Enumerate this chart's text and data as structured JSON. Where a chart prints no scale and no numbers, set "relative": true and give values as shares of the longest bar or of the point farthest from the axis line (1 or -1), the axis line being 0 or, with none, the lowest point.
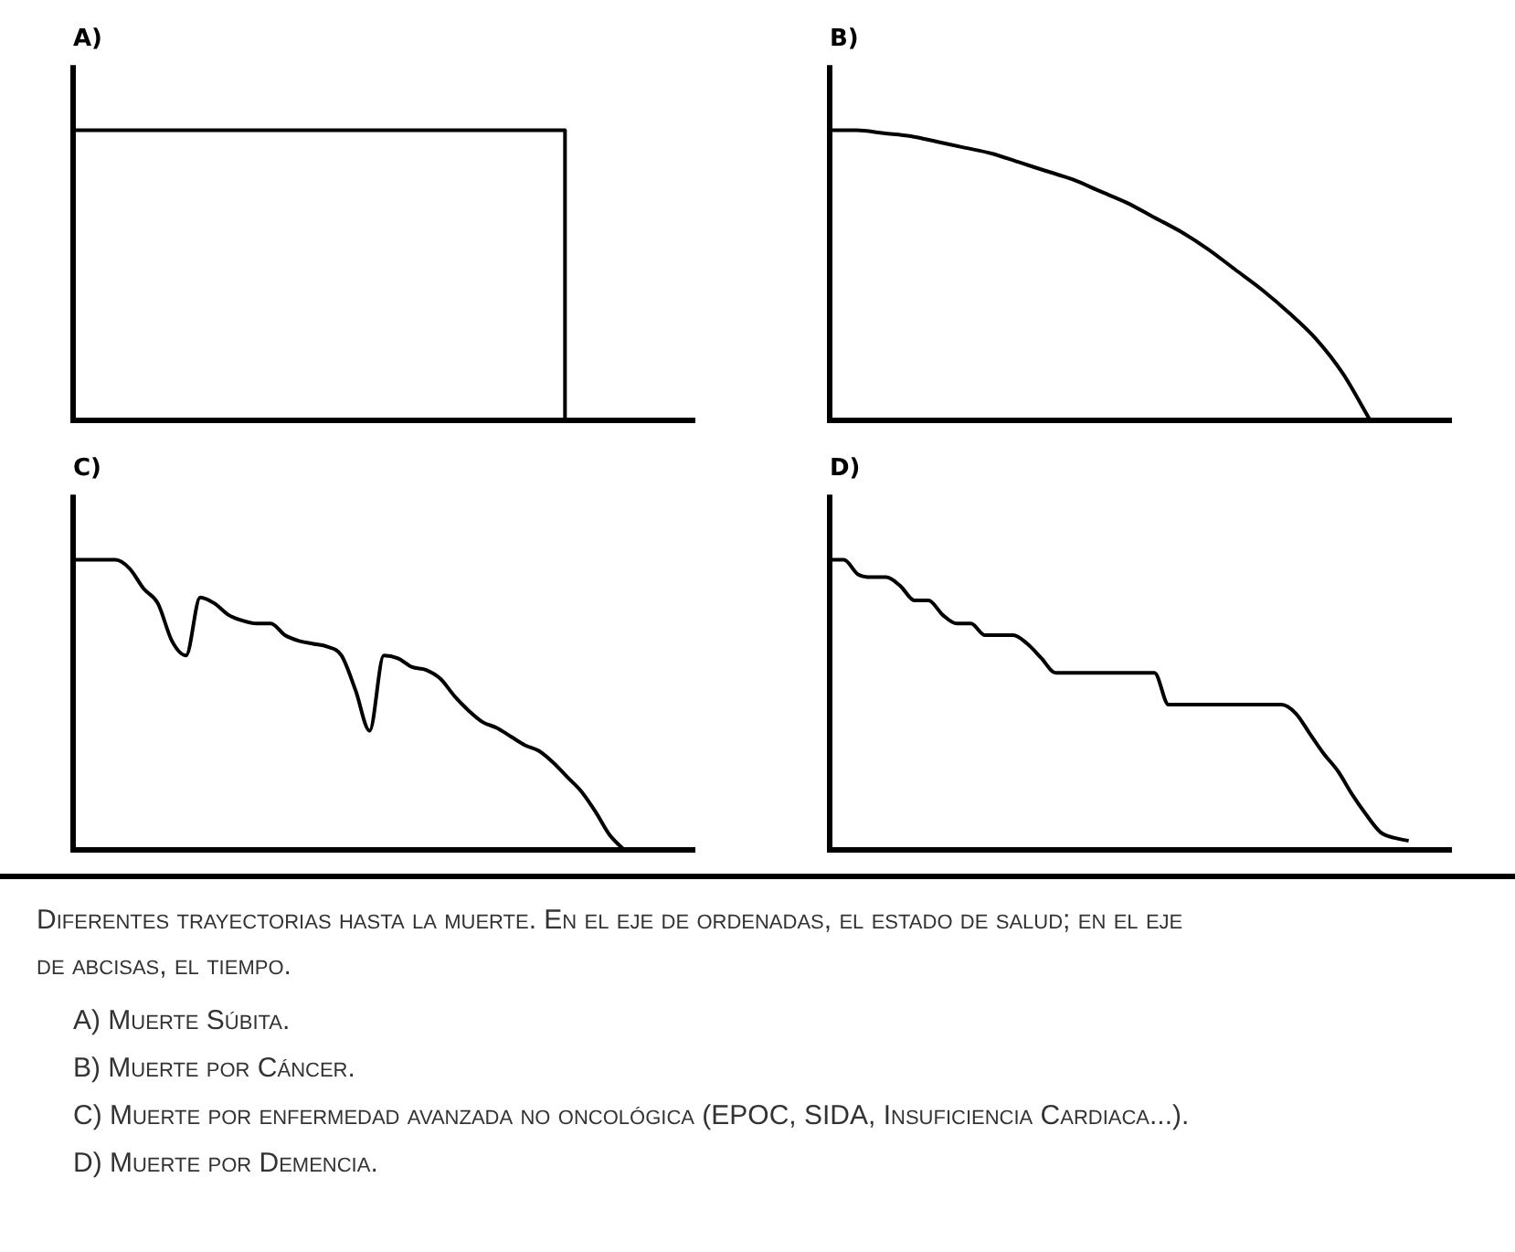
{
  "chart_data": [
    {
      "type": "step",
      "title": "A)",
      "relative": true,
      "grid": false,
      "legend": false,
      "marker": "none",
      "categories": [
        null,
        null,
        null,
        null,
        null,
        null,
        null,
        null,
        null,
        null,
        null,
        null,
        null,
        null,
        null,
        null,
        null,
        null,
        null,
        null,
        null,
        null,
        null,
        null,
        null
      ],
      "series": [
        {
          "color": "#000000",
          "values": [
            1,
            1,
            1,
            1,
            1,
            1,
            1,
            1,
            1,
            1,
            1,
            1,
            1,
            1,
            1,
            1,
            1,
            1,
            1,
            1,
            0,
            null,
            null,
            null,
            null
          ]
        }
      ]
    },
    {
      "type": "line",
      "title": "B)",
      "relative": true,
      "grid": false,
      "legend": false,
      "marker": "none",
      "categories": [
        null,
        null,
        null,
        null,
        null,
        null,
        null,
        null,
        null,
        null,
        null,
        null,
        null,
        null,
        null,
        null,
        null,
        null,
        null,
        null,
        null,
        null,
        null,
        null
      ],
      "series": [
        {
          "color": "#000000",
          "values": [
            1,
            1,
            0.99,
            0.98,
            0.96,
            0.94,
            0.92,
            0.89,
            0.86,
            0.83,
            0.79,
            0.75,
            0.7,
            0.65,
            0.59,
            0.52,
            0.45,
            0.37,
            0.28,
            0.16,
            0,
            null,
            null,
            null
          ]
        }
      ]
    },
    {
      "type": "line",
      "title": "C)",
      "relative": true,
      "grid": false,
      "legend": false,
      "marker": "none",
      "categories": [
        null,
        null,
        null,
        null,
        null,
        null,
        null,
        null,
        null,
        null,
        null,
        null,
        null,
        null,
        null,
        null,
        null,
        null,
        null,
        null,
        null,
        null,
        null,
        null,
        null,
        null,
        null,
        null,
        null,
        null,
        null,
        null,
        null,
        null,
        null,
        null,
        null,
        null,
        null,
        null,
        null,
        null,
        null,
        null,
        null
      ],
      "series": [
        {
          "color": "#000000",
          "values": [
            1,
            1,
            1,
            1,
            0.97,
            0.9,
            0.85,
            0.72,
            0.67,
            0.87,
            0.85,
            0.81,
            0.79,
            0.78,
            0.78,
            0.74,
            0.72,
            0.71,
            0.7,
            0.67,
            0.55,
            0.41,
            0.67,
            0.66,
            0.63,
            0.62,
            0.59,
            0.53,
            0.48,
            0.44,
            0.42,
            0.39,
            0.36,
            0.34,
            0.3,
            0.25,
            0.2,
            0.13,
            0.05,
            0,
            null,
            null,
            null,
            null,
            null
          ]
        }
      ]
    },
    {
      "type": "line",
      "title": "D)",
      "relative": true,
      "grid": false,
      "legend": false,
      "marker": "none",
      "categories": [
        null,
        null,
        null,
        null,
        null,
        null,
        null,
        null,
        null,
        null,
        null,
        null,
        null,
        null,
        null,
        null,
        null,
        null,
        null,
        null,
        null,
        null,
        null,
        null,
        null,
        null,
        null,
        null,
        null,
        null,
        null,
        null,
        null,
        null,
        null,
        null,
        null,
        null,
        null,
        null,
        null,
        null,
        null,
        null,
        null
      ],
      "series": [
        {
          "color": "#000000",
          "values": [
            1,
            1,
            0.95,
            0.94,
            0.94,
            0.91,
            0.86,
            0.86,
            0.81,
            0.78,
            0.78,
            0.74,
            0.74,
            0.74,
            0.71,
            0.66,
            0.61,
            0.61,
            0.61,
            0.61,
            0.61,
            0.61,
            0.61,
            0.61,
            0.5,
            0.5,
            0.5,
            0.5,
            0.5,
            0.5,
            0.5,
            0.5,
            0.5,
            0.47,
            0.4,
            0.33,
            0.27,
            0.19,
            0.12,
            0.06,
            0.04,
            0.03,
            null,
            null,
            null
          ]
        }
      ],
      "annotations": [
        "Diferentes trayectorias hasta la muerte. En el eje de ordenadas, el estado de salud; en el eje de abcisas, el tiempo.",
        "A) Muerte Súbita.",
        "B) Muerte por Cáncer.",
        "C) Muerte por enfermedad avanzada no oncológica (EPOC, SIDA, Insuficiencia Cardiaca...).",
        "D) Muerte por Demencia."
      ]
    }
  ]
}
